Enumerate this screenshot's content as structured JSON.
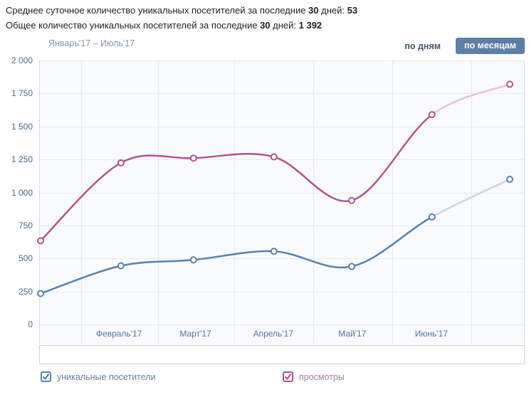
{
  "summary": {
    "avg_line": {
      "prefix": "Среднее суточное количество уникальных посетителей за последние ",
      "days": "30",
      "suffix": " дней: ",
      "value": "53"
    },
    "total_line": {
      "prefix": "Общее количество уникальных посетителей за последние ",
      "days": "30",
      "suffix": " дней: ",
      "value": "1 392"
    }
  },
  "toolbar": {
    "period_label": "Январь'17 – Июль'17",
    "by_days_label": "по дням",
    "by_months_label": "по месяцам",
    "active_mode": "по месяцам",
    "button_color": "#5c7ea7"
  },
  "chart_data": {
    "type": "line",
    "title": "Январь'17 – Июль'17",
    "categories": [
      "Январь'17",
      "Февраль'17",
      "Март'17",
      "Апрель'17",
      "Май'17",
      "Июнь'17",
      "Июль'17"
    ],
    "x_axis_labels": [
      "Февраль'17",
      "Март'17",
      "Апрель'17",
      "Май'17",
      "Июнь'17"
    ],
    "y_ticks": [
      "2 000",
      "1 750",
      "1 500",
      "1 250",
      "1 000",
      "750",
      "500",
      "250",
      "0"
    ],
    "ylim": [
      0,
      2000
    ],
    "grid": true,
    "legend_position": "bottom",
    "has_overview_strip": true,
    "note": "last segment (Июнь-Июль) drawn faded = incomplete month",
    "series": [
      {
        "key": "unique-visitors",
        "name": "уникальные посетители",
        "color": "#5b80a5",
        "faded_color": "#c9d7e4",
        "values": [
          235,
          445,
          490,
          555,
          440,
          815,
          1100
        ]
      },
      {
        "key": "views",
        "name": "просмотры",
        "color": "#b0548e",
        "faded_color": "#e6c2d8",
        "values": [
          635,
          1225,
          1260,
          1270,
          940,
          1590,
          1820
        ]
      }
    ]
  },
  "legend": {
    "items": [
      {
        "label": "уникальные посетители",
        "color": "#5d81ab",
        "checked": true
      },
      {
        "label": "просмотры",
        "color": "#ab5190",
        "checked": true
      }
    ]
  }
}
